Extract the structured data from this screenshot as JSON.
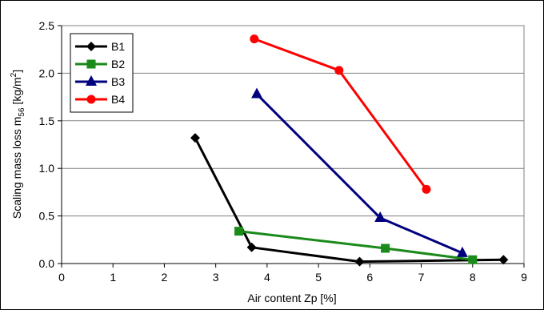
{
  "chart_data": {
    "type": "line",
    "title": "",
    "xlabel": "Air content Zp [%]",
    "ylabel_main": "Scaling mass loss m",
    "ylabel_sub": "56",
    "ylabel_unit_pre": " [kg/m",
    "ylabel_unit_sup": "2",
    "ylabel_unit_post": "]",
    "xlim": [
      0,
      9
    ],
    "ylim": [
      0,
      2.5
    ],
    "xticks": [
      "0",
      "1",
      "2",
      "3",
      "4",
      "5",
      "6",
      "7",
      "8",
      "9"
    ],
    "xtick_values": [
      0,
      1,
      2,
      3,
      4,
      5,
      6,
      7,
      8,
      9
    ],
    "yticks": [
      "0.0",
      "0.5",
      "1.0",
      "1.5",
      "2.0",
      "2.5"
    ],
    "ytick_values": [
      0,
      0.5,
      1.0,
      1.5,
      2.0,
      2.5
    ],
    "grid": "horizontal",
    "legend_position": "top-left",
    "series": [
      {
        "name": "B1",
        "color": "#000000",
        "marker": "diamond",
        "points": [
          [
            2.6,
            1.32
          ],
          [
            3.7,
            0.17
          ],
          [
            5.8,
            0.02
          ],
          [
            8.6,
            0.04
          ]
        ]
      },
      {
        "name": "B2",
        "color": "#1a8a1a",
        "marker": "square",
        "points": [
          [
            3.45,
            0.34
          ],
          [
            6.3,
            0.16
          ],
          [
            8.0,
            0.04
          ]
        ]
      },
      {
        "name": "B3",
        "color": "#00007f",
        "marker": "triangle",
        "points": [
          [
            3.8,
            1.78
          ],
          [
            6.2,
            0.48
          ],
          [
            7.8,
            0.11
          ]
        ]
      },
      {
        "name": "B4",
        "color": "#ff0000",
        "marker": "circle",
        "points": [
          [
            3.75,
            2.36
          ],
          [
            5.4,
            2.03
          ],
          [
            7.1,
            0.78
          ]
        ]
      }
    ]
  }
}
